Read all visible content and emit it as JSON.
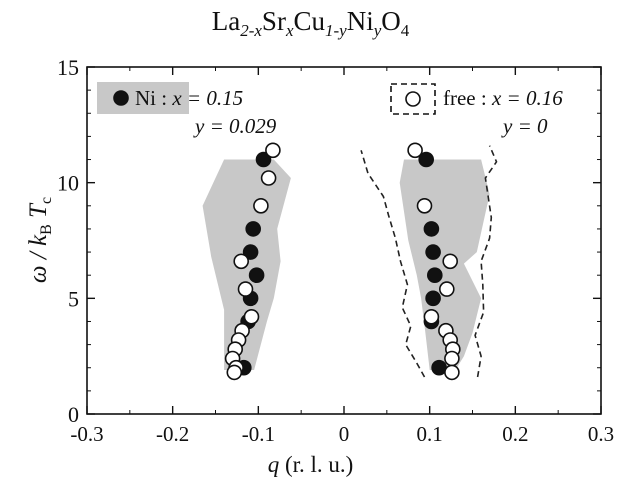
{
  "title": {
    "prefix": "La",
    "sub1": "2-x",
    "el2": "Sr",
    "sub2": "x",
    "el3": "Cu",
    "sub3": "1-y",
    "el4": "Ni",
    "sub4": "y",
    "el5": "O",
    "sub5": "4"
  },
  "axes": {
    "ylabel_omega": "ω / k",
    "ylabel_sub_b": "B",
    "ylabel_t": "T",
    "ylabel_sub_c": "c",
    "xlabel_q": "q",
    "xlabel_unit": " (r. l. u.)"
  },
  "legend": {
    "ni_label": "Ni :",
    "ni_x": "x = 0.15",
    "ni_y": "y = 0.029",
    "free_label": "free :",
    "free_x": "x = 0.16",
    "free_y": "y = 0"
  },
  "chart_data": {
    "type": "scatter",
    "xlim": [
      -0.3,
      0.3
    ],
    "ylim": [
      0,
      15
    ],
    "xticks": [
      -0.3,
      -0.2,
      -0.1,
      0,
      0.1,
      0.2,
      0.3
    ],
    "yticks": [
      0,
      5,
      10,
      15
    ],
    "xtick_labels": [
      "-0.3",
      "-0.2",
      "-0.1",
      "0",
      "0.1",
      "0.2",
      "0.3"
    ],
    "ytick_labels": [
      "0",
      "5",
      "10",
      "15"
    ],
    "series": [
      {
        "name": "Ni : x = 0.15, y = 0.029",
        "marker": "filled-circle",
        "color": "#111111",
        "points": [
          [
            -0.094,
            11.0
          ],
          [
            -0.106,
            8.0
          ],
          [
            -0.109,
            7.0
          ],
          [
            -0.102,
            6.0
          ],
          [
            -0.109,
            5.0
          ],
          [
            -0.112,
            4.0
          ],
          [
            -0.117,
            2.0
          ],
          [
            0.096,
            11.0
          ],
          [
            0.102,
            8.0
          ],
          [
            0.104,
            7.0
          ],
          [
            0.106,
            6.0
          ],
          [
            0.104,
            5.0
          ],
          [
            0.102,
            4.0
          ],
          [
            0.111,
            2.0
          ]
        ]
      },
      {
        "name": "free : x = 0.16, y = 0",
        "marker": "open-circle",
        "color": "#111111",
        "points": [
          [
            -0.083,
            11.4
          ],
          [
            -0.088,
            10.2
          ],
          [
            -0.097,
            9.0
          ],
          [
            -0.12,
            6.6
          ],
          [
            -0.115,
            5.4
          ],
          [
            -0.108,
            4.2
          ],
          [
            -0.119,
            3.6
          ],
          [
            -0.123,
            3.2
          ],
          [
            -0.127,
            2.8
          ],
          [
            -0.13,
            2.4
          ],
          [
            -0.126,
            2.0
          ],
          [
            -0.128,
            1.8
          ],
          [
            0.083,
            11.4
          ],
          [
            0.094,
            9.0
          ],
          [
            0.124,
            6.6
          ],
          [
            0.12,
            5.4
          ],
          [
            0.102,
            4.2
          ],
          [
            0.119,
            3.6
          ],
          [
            0.124,
            3.2
          ],
          [
            0.127,
            2.8
          ],
          [
            0.126,
            2.4
          ],
          [
            0.126,
            1.8
          ]
        ]
      }
    ],
    "shaded_regions": [
      {
        "side": "left",
        "color": "#c8c8c8",
        "polygon": [
          [
            -0.14,
            1.9
          ],
          [
            -0.14,
            4.5
          ],
          [
            -0.155,
            6.8
          ],
          [
            -0.165,
            9.0
          ],
          [
            -0.14,
            11.0
          ],
          [
            -0.082,
            11.0
          ],
          [
            -0.062,
            10.2
          ],
          [
            -0.078,
            8.0
          ],
          [
            -0.074,
            6.6
          ],
          [
            -0.082,
            5.0
          ],
          [
            -0.09,
            4.0
          ],
          [
            -0.105,
            1.9
          ]
        ]
      },
      {
        "side": "right",
        "color": "#c8c8c8",
        "polygon": [
          [
            0.1,
            1.9
          ],
          [
            0.095,
            3.5
          ],
          [
            0.09,
            5.0
          ],
          [
            0.085,
            6.0
          ],
          [
            0.075,
            7.5
          ],
          [
            0.065,
            10.0
          ],
          [
            0.07,
            11.0
          ],
          [
            0.16,
            11.0
          ],
          [
            0.17,
            9.5
          ],
          [
            0.155,
            7.0
          ],
          [
            0.14,
            6.5
          ],
          [
            0.16,
            5.0
          ],
          [
            0.15,
            3.5
          ],
          [
            0.14,
            2.5
          ],
          [
            0.13,
            1.9
          ]
        ]
      }
    ],
    "dashed_lines": [
      {
        "side": "right-outer",
        "points": [
          [
            0.156,
            1.6
          ],
          [
            0.16,
            2.5
          ],
          [
            0.153,
            3.4
          ],
          [
            0.163,
            4.4
          ],
          [
            0.162,
            5.6
          ],
          [
            0.16,
            6.6
          ],
          [
            0.17,
            7.6
          ],
          [
            0.172,
            8.5
          ],
          [
            0.165,
            10.2
          ],
          [
            0.178,
            10.9
          ],
          [
            0.17,
            11.6
          ]
        ]
      },
      {
        "side": "right-inner",
        "points": [
          [
            0.094,
            1.6
          ],
          [
            0.085,
            2.2
          ],
          [
            0.072,
            3.0
          ],
          [
            0.078,
            3.8
          ],
          [
            0.068,
            4.6
          ],
          [
            0.074,
            5.6
          ],
          [
            0.066,
            6.6
          ],
          [
            0.06,
            7.6
          ],
          [
            0.052,
            8.6
          ],
          [
            0.046,
            9.4
          ],
          [
            0.028,
            10.4
          ],
          [
            0.02,
            11.4
          ]
        ]
      }
    ],
    "grid": false,
    "legend_position": "top"
  }
}
